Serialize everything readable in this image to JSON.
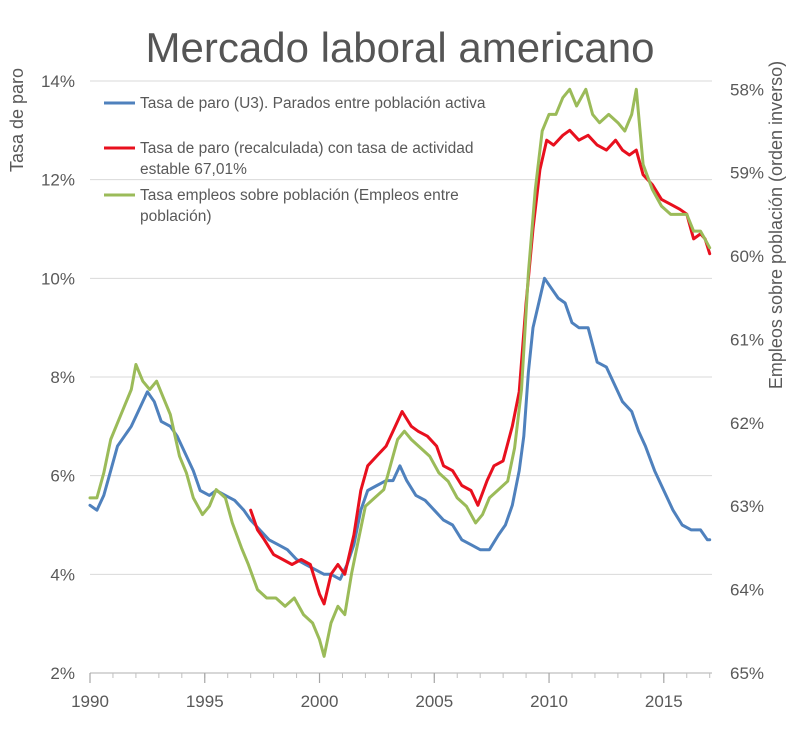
{
  "chart_data": {
    "type": "line",
    "title": "Mercado laboral americano",
    "ylabel": "Tasa de paro",
    "y2label": "Empleos sobre población (orden inverso)",
    "x_ticks": [
      "1990",
      "1995",
      "2000",
      "2005",
      "2010",
      "2015"
    ],
    "xlim": [
      1990,
      2017.1
    ],
    "ylim": [
      2,
      14
    ],
    "y_ticks": [
      "2%",
      "4%",
      "6%",
      "8%",
      "10%",
      "12%",
      "14%"
    ],
    "y2lim": [
      65,
      57.9
    ],
    "y2_inverted": true,
    "y2_ticks": [
      "58%",
      "59%",
      "60%",
      "61%",
      "62%",
      "63%",
      "64%",
      "65%"
    ],
    "grid": true,
    "legend_position": "top-left",
    "series": [
      {
        "name": "Tasa de paro (U3). Parados entre población activa",
        "color": "#4f81bd",
        "axis": "left",
        "points": [
          [
            1990.0,
            5.4
          ],
          [
            1990.3,
            5.3
          ],
          [
            1990.6,
            5.6
          ],
          [
            1990.9,
            6.1
          ],
          [
            1991.2,
            6.6
          ],
          [
            1991.5,
            6.8
          ],
          [
            1991.8,
            7.0
          ],
          [
            1992.1,
            7.3
          ],
          [
            1992.5,
            7.7
          ],
          [
            1992.8,
            7.5
          ],
          [
            1993.1,
            7.1
          ],
          [
            1993.5,
            7.0
          ],
          [
            1993.8,
            6.8
          ],
          [
            1994.1,
            6.5
          ],
          [
            1994.5,
            6.1
          ],
          [
            1994.8,
            5.7
          ],
          [
            1995.2,
            5.6
          ],
          [
            1995.5,
            5.7
          ],
          [
            1995.9,
            5.6
          ],
          [
            1996.3,
            5.5
          ],
          [
            1996.7,
            5.3
          ],
          [
            1997.0,
            5.1
          ],
          [
            1997.4,
            4.9
          ],
          [
            1997.8,
            4.7
          ],
          [
            1998.2,
            4.6
          ],
          [
            1998.6,
            4.5
          ],
          [
            1999.0,
            4.3
          ],
          [
            1999.4,
            4.2
          ],
          [
            1999.8,
            4.1
          ],
          [
            2000.2,
            4.0
          ],
          [
            2000.5,
            4.0
          ],
          [
            2000.9,
            3.9
          ],
          [
            2001.2,
            4.2
          ],
          [
            2001.5,
            4.6
          ],
          [
            2001.8,
            5.3
          ],
          [
            2002.1,
            5.7
          ],
          [
            2002.5,
            5.8
          ],
          [
            2002.9,
            5.9
          ],
          [
            2003.2,
            5.9
          ],
          [
            2003.5,
            6.2
          ],
          [
            2003.8,
            5.9
          ],
          [
            2004.2,
            5.6
          ],
          [
            2004.6,
            5.5
          ],
          [
            2005.0,
            5.3
          ],
          [
            2005.4,
            5.1
          ],
          [
            2005.8,
            5.0
          ],
          [
            2006.2,
            4.7
          ],
          [
            2006.6,
            4.6
          ],
          [
            2007.0,
            4.5
          ],
          [
            2007.4,
            4.5
          ],
          [
            2007.8,
            4.8
          ],
          [
            2008.1,
            5.0
          ],
          [
            2008.4,
            5.4
          ],
          [
            2008.7,
            6.1
          ],
          [
            2008.9,
            6.8
          ],
          [
            2009.1,
            8.1
          ],
          [
            2009.3,
            9.0
          ],
          [
            2009.6,
            9.6
          ],
          [
            2009.8,
            10.0
          ],
          [
            2010.1,
            9.8
          ],
          [
            2010.4,
            9.6
          ],
          [
            2010.7,
            9.5
          ],
          [
            2011.0,
            9.1
          ],
          [
            2011.3,
            9.0
          ],
          [
            2011.7,
            9.0
          ],
          [
            2012.1,
            8.3
          ],
          [
            2012.5,
            8.2
          ],
          [
            2012.9,
            7.8
          ],
          [
            2013.2,
            7.5
          ],
          [
            2013.6,
            7.3
          ],
          [
            2013.9,
            6.9
          ],
          [
            2014.2,
            6.6
          ],
          [
            2014.6,
            6.1
          ],
          [
            2015.0,
            5.7
          ],
          [
            2015.4,
            5.3
          ],
          [
            2015.8,
            5.0
          ],
          [
            2016.2,
            4.9
          ],
          [
            2016.6,
            4.9
          ],
          [
            2016.9,
            4.7
          ],
          [
            2017.0,
            4.7
          ]
        ]
      },
      {
        "name": "Tasa de paro (recalculada) con tasa de actividad estable 67,01%",
        "color": "#e8101e",
        "axis": "left",
        "points": [
          [
            1997.0,
            5.3
          ],
          [
            1997.3,
            4.9
          ],
          [
            1997.6,
            4.7
          ],
          [
            1998.0,
            4.4
          ],
          [
            1998.4,
            4.3
          ],
          [
            1998.8,
            4.2
          ],
          [
            1999.2,
            4.3
          ],
          [
            1999.6,
            4.2
          ],
          [
            2000.0,
            3.6
          ],
          [
            2000.2,
            3.4
          ],
          [
            2000.5,
            4.0
          ],
          [
            2000.8,
            4.2
          ],
          [
            2001.1,
            4.0
          ],
          [
            2001.5,
            4.8
          ],
          [
            2001.8,
            5.7
          ],
          [
            2002.1,
            6.2
          ],
          [
            2002.5,
            6.4
          ],
          [
            2002.9,
            6.6
          ],
          [
            2003.3,
            7.0
          ],
          [
            2003.6,
            7.3
          ],
          [
            2004.0,
            7.0
          ],
          [
            2004.3,
            6.9
          ],
          [
            2004.7,
            6.8
          ],
          [
            2005.1,
            6.6
          ],
          [
            2005.4,
            6.2
          ],
          [
            2005.8,
            6.1
          ],
          [
            2006.2,
            5.8
          ],
          [
            2006.6,
            5.7
          ],
          [
            2006.9,
            5.4
          ],
          [
            2007.3,
            5.9
          ],
          [
            2007.6,
            6.2
          ],
          [
            2008.0,
            6.3
          ],
          [
            2008.4,
            7.0
          ],
          [
            2008.7,
            7.7
          ],
          [
            2009.0,
            9.5
          ],
          [
            2009.3,
            11.0
          ],
          [
            2009.6,
            12.2
          ],
          [
            2009.9,
            12.8
          ],
          [
            2010.2,
            12.7
          ],
          [
            2010.6,
            12.9
          ],
          [
            2010.9,
            13.0
          ],
          [
            2011.3,
            12.8
          ],
          [
            2011.7,
            12.9
          ],
          [
            2012.1,
            12.7
          ],
          [
            2012.5,
            12.6
          ],
          [
            2012.9,
            12.8
          ],
          [
            2013.2,
            12.6
          ],
          [
            2013.5,
            12.5
          ],
          [
            2013.8,
            12.6
          ],
          [
            2014.1,
            12.1
          ],
          [
            2014.5,
            11.9
          ],
          [
            2014.9,
            11.6
          ],
          [
            2015.3,
            11.5
          ],
          [
            2015.7,
            11.4
          ],
          [
            2016.0,
            11.3
          ],
          [
            2016.3,
            10.8
          ],
          [
            2016.6,
            10.9
          ],
          [
            2016.8,
            10.8
          ],
          [
            2017.0,
            10.5
          ]
        ]
      },
      {
        "name": "Tasa empleos sobre población (Empleos entre población)",
        "color": "#9bbb59",
        "axis": "right",
        "points": [
          [
            1990.0,
            62.9
          ],
          [
            1990.3,
            62.9
          ],
          [
            1990.6,
            62.6
          ],
          [
            1990.9,
            62.2
          ],
          [
            1991.2,
            62.0
          ],
          [
            1991.5,
            61.8
          ],
          [
            1991.8,
            61.6
          ],
          [
            1992.0,
            61.3
          ],
          [
            1992.3,
            61.5
          ],
          [
            1992.6,
            61.6
          ],
          [
            1992.9,
            61.5
          ],
          [
            1993.2,
            61.7
          ],
          [
            1993.5,
            61.9
          ],
          [
            1993.9,
            62.4
          ],
          [
            1994.2,
            62.6
          ],
          [
            1994.5,
            62.9
          ],
          [
            1994.9,
            63.1
          ],
          [
            1995.2,
            63.0
          ],
          [
            1995.5,
            62.8
          ],
          [
            1995.9,
            62.9
          ],
          [
            1996.2,
            63.2
          ],
          [
            1996.6,
            63.5
          ],
          [
            1996.9,
            63.7
          ],
          [
            1997.3,
            64.0
          ],
          [
            1997.7,
            64.1
          ],
          [
            1998.1,
            64.1
          ],
          [
            1998.5,
            64.2
          ],
          [
            1998.9,
            64.1
          ],
          [
            1999.3,
            64.3
          ],
          [
            1999.7,
            64.4
          ],
          [
            2000.0,
            64.6
          ],
          [
            2000.2,
            64.8
          ],
          [
            2000.5,
            64.4
          ],
          [
            2000.8,
            64.2
          ],
          [
            2001.1,
            64.3
          ],
          [
            2001.4,
            63.8
          ],
          [
            2001.7,
            63.4
          ],
          [
            2002.0,
            63.0
          ],
          [
            2002.4,
            62.9
          ],
          [
            2002.8,
            62.8
          ],
          [
            2003.1,
            62.5
          ],
          [
            2003.4,
            62.2
          ],
          [
            2003.7,
            62.1
          ],
          [
            2004.0,
            62.2
          ],
          [
            2004.4,
            62.3
          ],
          [
            2004.8,
            62.4
          ],
          [
            2005.2,
            62.6
          ],
          [
            2005.6,
            62.7
          ],
          [
            2006.0,
            62.9
          ],
          [
            2006.4,
            63.0
          ],
          [
            2006.8,
            63.2
          ],
          [
            2007.1,
            63.1
          ],
          [
            2007.4,
            62.9
          ],
          [
            2007.8,
            62.8
          ],
          [
            2008.2,
            62.7
          ],
          [
            2008.5,
            62.3
          ],
          [
            2008.8,
            61.6
          ],
          [
            2009.1,
            60.2
          ],
          [
            2009.4,
            59.2
          ],
          [
            2009.7,
            58.5
          ],
          [
            2010.0,
            58.3
          ],
          [
            2010.3,
            58.3
          ],
          [
            2010.6,
            58.1
          ],
          [
            2010.9,
            58.0
          ],
          [
            2011.2,
            58.2
          ],
          [
            2011.6,
            58.0
          ],
          [
            2011.9,
            58.3
          ],
          [
            2012.2,
            58.4
          ],
          [
            2012.6,
            58.3
          ],
          [
            2013.0,
            58.4
          ],
          [
            2013.3,
            58.5
          ],
          [
            2013.6,
            58.3
          ],
          [
            2013.8,
            58.0
          ],
          [
            2014.1,
            58.9
          ],
          [
            2014.5,
            59.2
          ],
          [
            2014.9,
            59.4
          ],
          [
            2015.3,
            59.5
          ],
          [
            2015.7,
            59.5
          ],
          [
            2016.0,
            59.5
          ],
          [
            2016.3,
            59.7
          ],
          [
            2016.6,
            59.7
          ],
          [
            2016.8,
            59.8
          ],
          [
            2017.0,
            59.9
          ]
        ]
      }
    ]
  }
}
